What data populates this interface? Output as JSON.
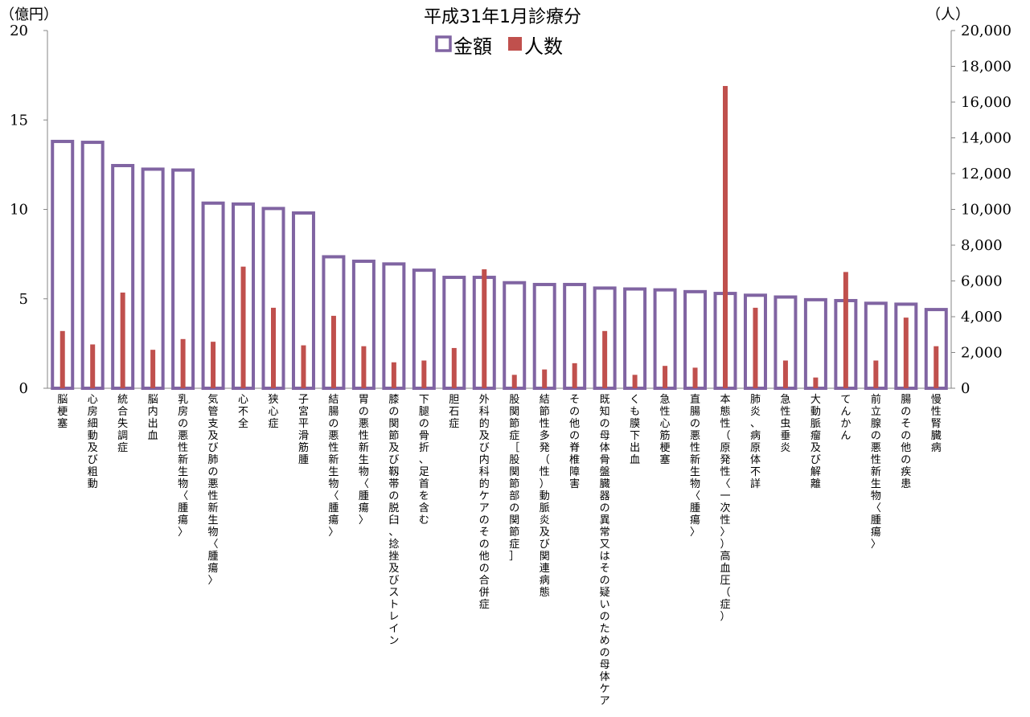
{
  "chart_data": {
    "type": "bar",
    "title": "平成31年1月診療分",
    "y_left_unit": "（億円）",
    "y_right_unit": "（人）",
    "ylim_left": [
      0,
      20
    ],
    "ylim_right": [
      0,
      20000
    ],
    "yticks_left": [
      "0",
      "5",
      "10",
      "15",
      "20"
    ],
    "yticks_right": [
      "0",
      "2,000",
      "4,000",
      "6,000",
      "8,000",
      "10,000",
      "12,000",
      "14,000",
      "16,000",
      "18,000",
      "20,000"
    ],
    "legend_position": "top-center",
    "grid": false,
    "colors": {
      "amount": "#8064A2",
      "people": "#C0504D"
    },
    "categories": [
      "脳梗塞",
      "心房細動及び粗動",
      "統合失調症",
      "脳内出血",
      "乳房の悪性新生物〈腫瘍〉",
      "気管支及び肺の悪性新生物〈腫瘍〉",
      "心不全",
      "狭心症",
      "子宮平滑筋腫",
      "結腸の悪性新生物〈腫瘍〉",
      "胃の悪性新生物〈腫瘍〉",
      "膝の関節及び靱帯の脱臼、捻挫及びストレイン",
      "下腿の骨折、足首を含む",
      "胆石症",
      "外科的及び内科的ケアのその他の合併症",
      "股関節症［股関節部の関節症］",
      "結節性多発（性）動脈炎及び関連病態",
      "その他の脊椎障害",
      "既知の母体骨盤臓器の異常又はその疑いのための母体ケア",
      "くも膜下出血",
      "急性心筋梗塞",
      "直腸の悪性新生物〈腫瘍〉",
      "本態性（原発性〈一次性〉）高血圧（症）",
      "肺炎、病原体不詳",
      "急性虫垂炎",
      "大動脈瘤及び解離",
      "てんかん",
      "前立腺の悪性新生物〈腫瘍〉",
      "腸のその他の疾患",
      "慢性腎臓病"
    ],
    "series": [
      {
        "name": "金額",
        "axis": "left",
        "style": "outlined-bar",
        "values": [
          13.8,
          13.75,
          12.45,
          12.25,
          12.2,
          10.35,
          10.3,
          10.05,
          9.8,
          7.35,
          7.1,
          6.95,
          6.6,
          6.2,
          6.2,
          5.9,
          5.8,
          5.8,
          5.6,
          5.55,
          5.5,
          5.4,
          5.3,
          5.2,
          5.1,
          4.95,
          4.9,
          4.75,
          4.7,
          4.4
        ]
      },
      {
        "name": "人数",
        "axis": "right",
        "style": "thin-bar",
        "values": [
          3200,
          2450,
          5350,
          2150,
          2750,
          2600,
          6800,
          4500,
          2400,
          4050,
          2350,
          1450,
          1550,
          2250,
          6650,
          750,
          1050,
          1400,
          3200,
          750,
          1250,
          1150,
          16900,
          4500,
          1550,
          600,
          6500,
          1550,
          3950,
          2350
        ]
      }
    ]
  }
}
